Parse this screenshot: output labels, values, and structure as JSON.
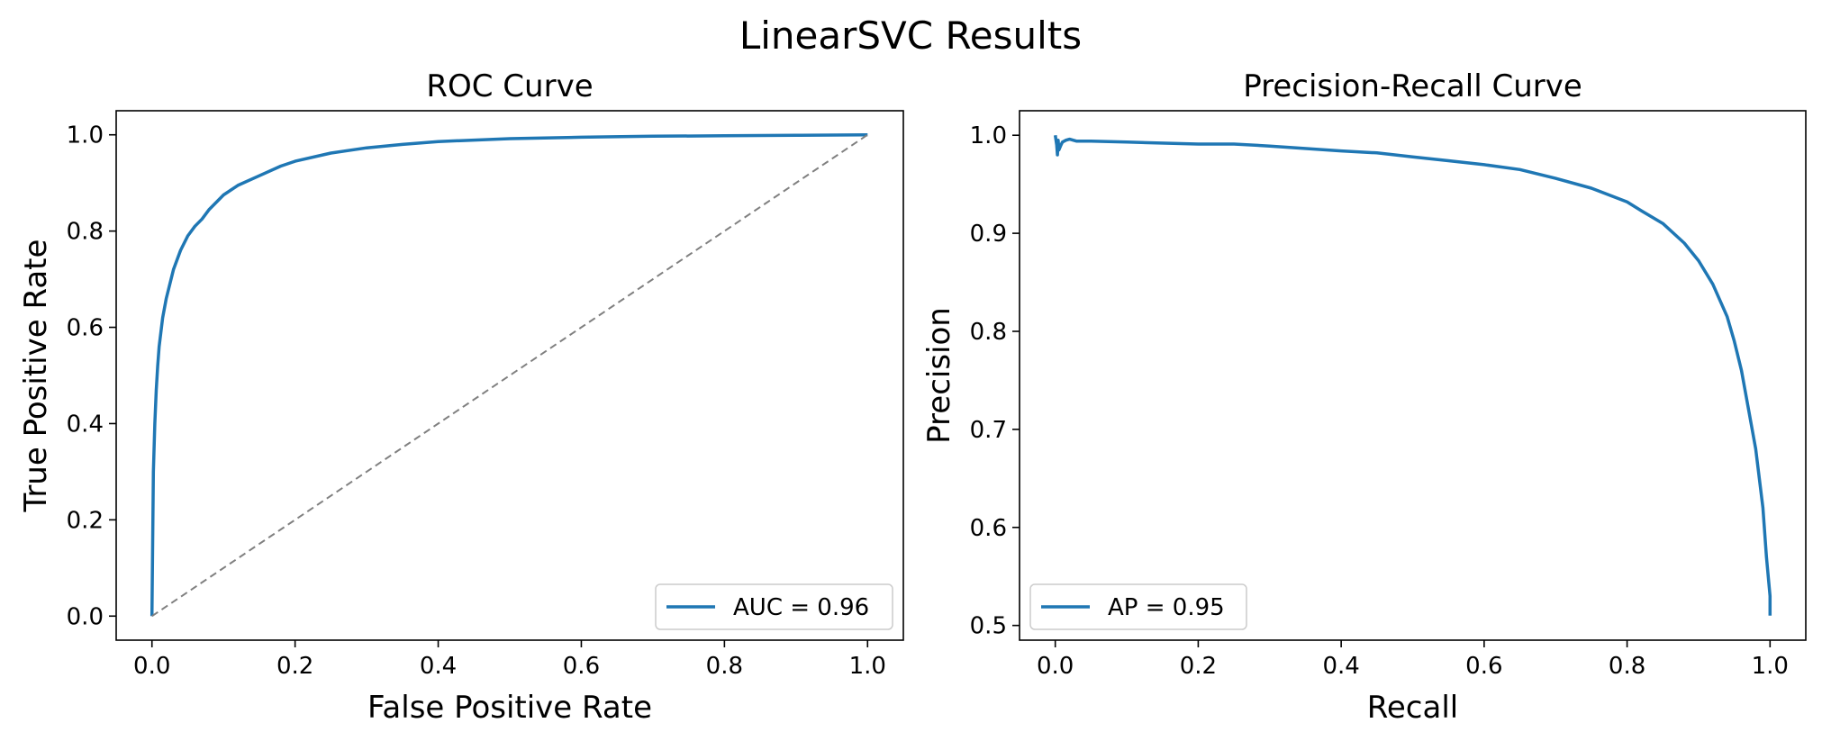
{
  "figure": {
    "title": "LinearSVC Results"
  },
  "chart_data": [
    {
      "type": "line",
      "title": "ROC Curve",
      "xlabel": "False Positive Rate",
      "ylabel": "True Positive Rate",
      "xlim": [
        -0.05,
        1.05
      ],
      "ylim": [
        -0.05,
        1.05
      ],
      "xticks": [
        "0.0",
        "0.2",
        "0.4",
        "0.6",
        "0.8",
        "1.0"
      ],
      "yticks": [
        "0.0",
        "0.2",
        "0.4",
        "0.6",
        "0.8",
        "1.0"
      ],
      "legend_position": "lower-right",
      "grid": false,
      "series": [
        {
          "name": "AUC = 0.96",
          "color": "#1f77b4",
          "style": "solid",
          "x": [
            0,
            0.002,
            0.004,
            0.006,
            0.008,
            0.01,
            0.015,
            0.02,
            0.025,
            0.03,
            0.04,
            0.05,
            0.06,
            0.07,
            0.08,
            0.09,
            0.1,
            0.12,
            0.15,
            0.18,
            0.2,
            0.25,
            0.3,
            0.35,
            0.4,
            0.5,
            0.6,
            0.7,
            0.8,
            0.9,
            1.0
          ],
          "y": [
            0,
            0.3,
            0.4,
            0.47,
            0.52,
            0.56,
            0.62,
            0.66,
            0.69,
            0.72,
            0.76,
            0.79,
            0.81,
            0.825,
            0.845,
            0.86,
            0.875,
            0.895,
            0.915,
            0.935,
            0.945,
            0.962,
            0.973,
            0.98,
            0.986,
            0.992,
            0.995,
            0.997,
            0.998,
            0.999,
            1.0
          ]
        },
        {
          "name": "",
          "color": "#808080",
          "style": "dashed",
          "x": [
            0,
            1
          ],
          "y": [
            0,
            1
          ]
        }
      ],
      "legend": [
        {
          "label": "AUC = 0.96",
          "color": "#1f77b4"
        }
      ]
    },
    {
      "type": "line",
      "title": "Precision-Recall Curve",
      "xlabel": "Recall",
      "ylabel": "Precision",
      "xlim": [
        -0.05,
        1.05
      ],
      "ylim": [
        0.485,
        1.025
      ],
      "xticks": [
        "0.0",
        "0.2",
        "0.4",
        "0.6",
        "0.8",
        "1.0"
      ],
      "yticks": [
        "0.5",
        "0.6",
        "0.7",
        "0.8",
        "0.9",
        "1.0"
      ],
      "legend_position": "lower-left",
      "grid": false,
      "series": [
        {
          "name": "AP = 0.95",
          "color": "#1f77b4",
          "style": "solid",
          "x": [
            0,
            0.002,
            0.003,
            0.004,
            0.005,
            0.008,
            0.01,
            0.015,
            0.02,
            0.03,
            0.05,
            0.1,
            0.2,
            0.25,
            0.3,
            0.4,
            0.45,
            0.5,
            0.55,
            0.6,
            0.65,
            0.7,
            0.75,
            0.8,
            0.82,
            0.85,
            0.88,
            0.9,
            0.92,
            0.94,
            0.95,
            0.96,
            0.97,
            0.98,
            0.99,
            0.995,
            1.0,
            1.0
          ],
          "y": [
            1.0,
            0.99,
            0.98,
            0.995,
            0.985,
            0.99,
            0.993,
            0.995,
            0.996,
            0.994,
            0.994,
            0.993,
            0.991,
            0.991,
            0.989,
            0.984,
            0.982,
            0.978,
            0.974,
            0.97,
            0.965,
            0.956,
            0.946,
            0.932,
            0.923,
            0.91,
            0.89,
            0.872,
            0.848,
            0.815,
            0.79,
            0.76,
            0.72,
            0.68,
            0.62,
            0.57,
            0.53,
            0.51
          ]
        }
      ],
      "legend": [
        {
          "label": "AP = 0.95",
          "color": "#1f77b4"
        }
      ]
    }
  ]
}
